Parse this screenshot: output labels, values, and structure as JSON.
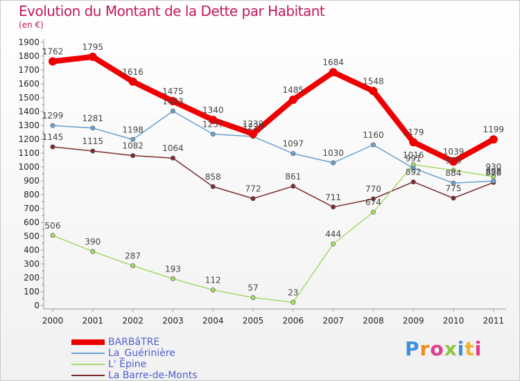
{
  "header": {
    "title": "Evolution du Montant de la Dette par Habitant",
    "subtitle": "(en €)"
  },
  "brand": {
    "logo_text": "Proxiti",
    "colors": [
      "#3f8fd8",
      "#f08a1c",
      "#e5398a",
      "#8cc63e",
      "#3f8fd8",
      "#f0b323",
      "#e5398a"
    ]
  },
  "chart_data": {
    "type": "line",
    "x": [
      "2000",
      "2001",
      "2002",
      "2003",
      "2004",
      "2005",
      "2006",
      "2007",
      "2008",
      "2009",
      "2010",
      "2011"
    ],
    "ylim": [
      0,
      1900
    ],
    "yticks": [
      0,
      100,
      200,
      300,
      400,
      500,
      600,
      700,
      800,
      900,
      1000,
      1100,
      1200,
      1300,
      1400,
      1500,
      1600,
      1700,
      1800,
      1900
    ],
    "grid": false,
    "legend_position": "bottom-left",
    "series": [
      {
        "name": "BARBâTRE",
        "color": "#ee0000",
        "values": [
          1762,
          1795,
          1616,
          1475,
          1340,
          1239,
          1485,
          1684,
          1548,
          1179,
          1039,
          1199
        ],
        "labels": [
          "1762",
          "1795",
          "1616",
          "1475",
          "1340",
          "1239",
          "1485",
          "1684",
          "1548",
          "1179",
          "1039",
          "1199"
        ]
      },
      {
        "name": "La_Guérinière",
        "color": "#6a9fd0",
        "values": [
          1299,
          1281,
          1198,
          1403,
          1237,
          1220,
          1097,
          1030,
          1160,
          991,
          884,
          898
        ],
        "labels": [
          "1299",
          "1281",
          "1198",
          "1403",
          "1237",
          "1220",
          "1097",
          "1030",
          "1160",
          "991",
          "884",
          "898"
        ]
      },
      {
        "name": "L' Épine",
        "color": "#a6d96a",
        "values": [
          506,
          390,
          287,
          193,
          112,
          57,
          23,
          444,
          674,
          1016,
          976,
          930
        ],
        "labels": [
          "506",
          "390",
          "287",
          "193",
          "112",
          "57",
          "23",
          "444",
          "674",
          "1016",
          "976",
          "930"
        ]
      },
      {
        "name": "La Barre-de-Monts",
        "color": "#7b2b2b",
        "values": [
          1145,
          1115,
          1082,
          1064,
          858,
          772,
          861,
          711,
          770,
          892,
          775,
          888
        ],
        "labels": [
          "1145",
          "1115",
          "1082",
          "1064",
          "858",
          "772",
          "861",
          "711",
          "770",
          "892",
          "775",
          "888"
        ]
      }
    ]
  }
}
